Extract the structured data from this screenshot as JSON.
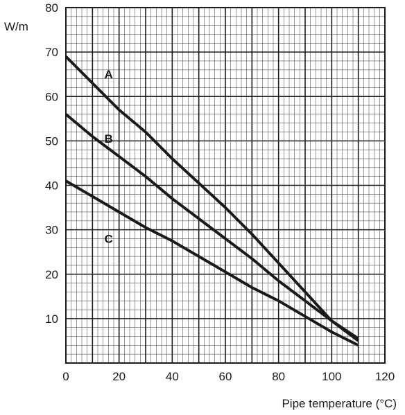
{
  "chart_data": {
    "type": "line",
    "title": "",
    "xlabel": "Pipe temperature (°C)",
    "ylabel": "W/m",
    "xlim": [
      0,
      120
    ],
    "ylim": [
      0,
      80
    ],
    "x_ticks": [
      0,
      20,
      40,
      60,
      80,
      100,
      120
    ],
    "y_ticks": [
      10,
      20,
      30,
      40,
      50,
      60,
      70,
      80
    ],
    "grid": {
      "major_x_step": 10,
      "major_y_step": 10,
      "minor_x_step": 2,
      "minor_y_step": 2
    },
    "line_color": "#1a1a1a",
    "series": [
      {
        "name": "A",
        "label_at": [
          14,
          65
        ],
        "points": [
          [
            0,
            69
          ],
          [
            10,
            63
          ],
          [
            20,
            57
          ],
          [
            30,
            52
          ],
          [
            40,
            46
          ],
          [
            50,
            40.5
          ],
          [
            60,
            35
          ],
          [
            70,
            29
          ],
          [
            80,
            22.5
          ],
          [
            90,
            16
          ],
          [
            100,
            9.5
          ],
          [
            110,
            5
          ]
        ]
      },
      {
        "name": "B",
        "label_at": [
          14,
          50.5
        ],
        "points": [
          [
            0,
            56
          ],
          [
            10,
            51
          ],
          [
            20,
            46.5
          ],
          [
            30,
            42
          ],
          [
            40,
            37
          ],
          [
            50,
            32.5
          ],
          [
            60,
            28
          ],
          [
            70,
            23.5
          ],
          [
            80,
            18.5
          ],
          [
            90,
            14
          ],
          [
            100,
            9.5
          ],
          [
            110,
            5.5
          ]
        ]
      },
      {
        "name": "C",
        "label_at": [
          14,
          28
        ],
        "points": [
          [
            0,
            41
          ],
          [
            10,
            37.5
          ],
          [
            20,
            34
          ],
          [
            30,
            30.5
          ],
          [
            40,
            27.5
          ],
          [
            50,
            24
          ],
          [
            60,
            20.5
          ],
          [
            70,
            17
          ],
          [
            80,
            14
          ],
          [
            90,
            10.5
          ],
          [
            100,
            7
          ],
          [
            110,
            4
          ]
        ]
      }
    ]
  }
}
